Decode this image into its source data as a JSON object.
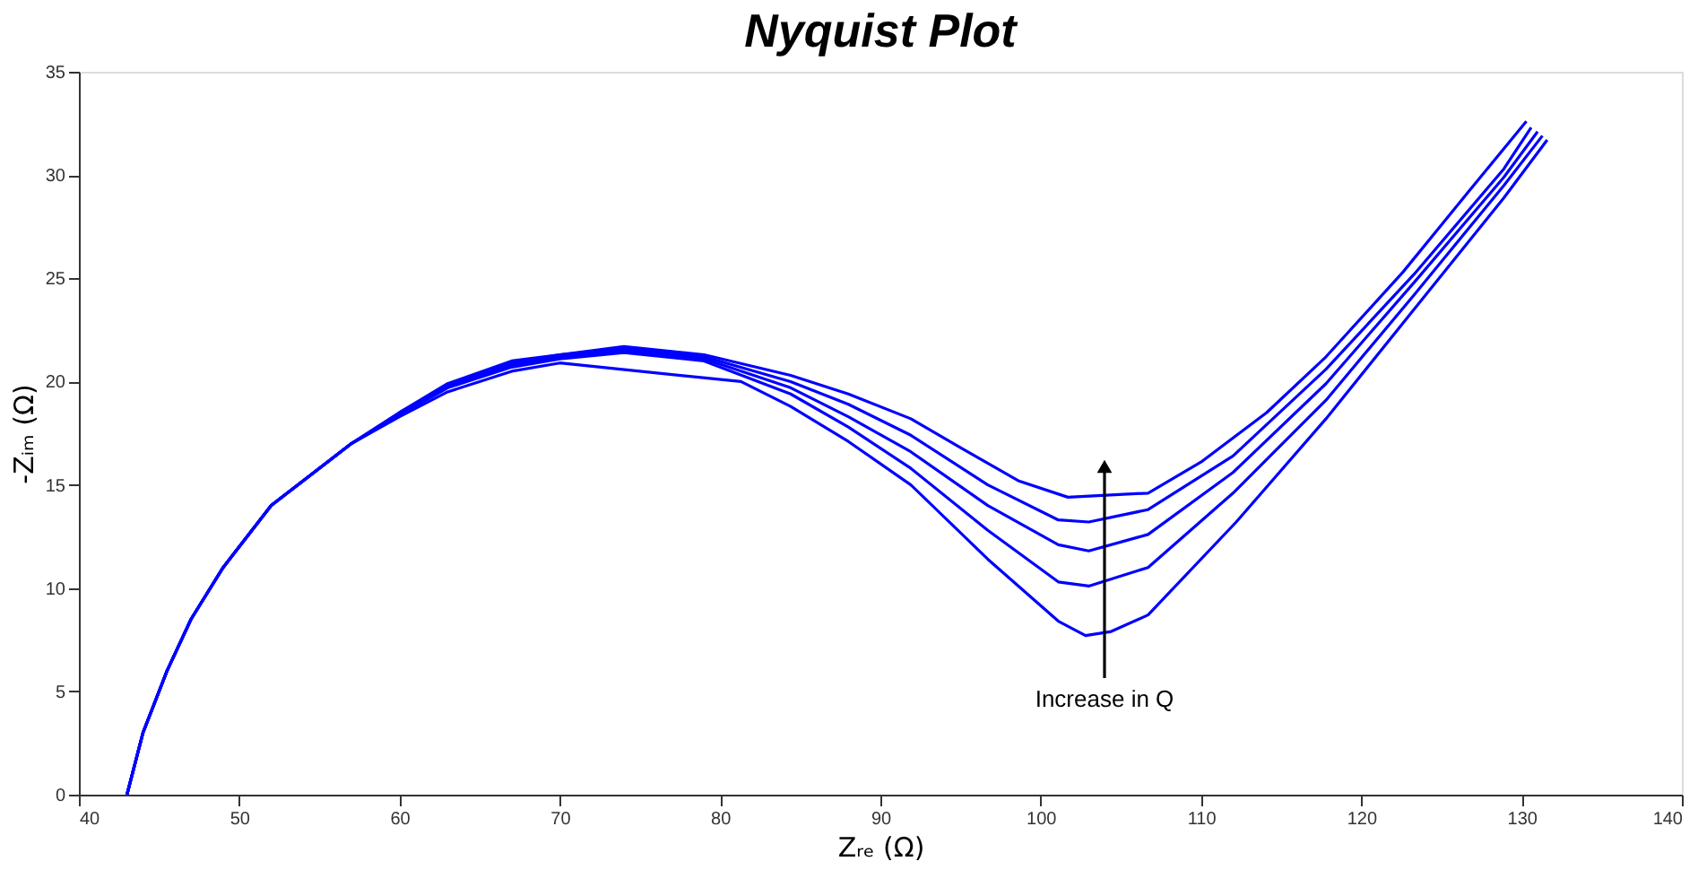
{
  "chart_data": {
    "type": "line",
    "title": "Nyquist Plot",
    "xlabel": "Zᵣₑ (Ω)",
    "ylabel": "-Zᵢₘ (Ω)",
    "xlim": [
      40,
      140
    ],
    "xticks": [
      40,
      50,
      60,
      70,
      80,
      90,
      100,
      110,
      120,
      130,
      140
    ],
    "ylim": [
      0,
      35
    ],
    "yticks": [
      0,
      5,
      10,
      15,
      20,
      25,
      30,
      35
    ],
    "annotations": [
      "Increase in Q"
    ],
    "series": [
      {
        "color": "#0000ff",
        "x": [
          43,
          44,
          45.5,
          47,
          49,
          52,
          57,
          60,
          63,
          67,
          70,
          81.3,
          84.4,
          88,
          91.9,
          96.7,
          101.1,
          102.8,
          104.4,
          106.7,
          112.2,
          117.8,
          123.3,
          128.9,
          131.6
        ],
        "values": [
          0,
          3,
          6,
          8.5,
          11,
          14,
          17,
          18.3,
          19.5,
          20.5,
          20.9,
          20.0,
          18.8,
          17.1,
          15.0,
          11.4,
          8.4,
          7.7,
          7.9,
          8.7,
          13.2,
          18.2,
          23.5,
          28.9,
          31.7
        ]
      },
      {
        "color": "#0000ff",
        "x": [
          43,
          44,
          45.5,
          47,
          49,
          52,
          57,
          60,
          63,
          67,
          70,
          74,
          79,
          84.4,
          88,
          91.9,
          96.7,
          101.1,
          103,
          106.7,
          112,
          117.8,
          123.3,
          128.9,
          131.3
        ],
        "values": [
          0,
          3,
          6,
          8.5,
          11,
          14,
          17,
          18.4,
          19.7,
          20.7,
          21.1,
          21.4,
          21.0,
          19.4,
          17.8,
          15.8,
          12.8,
          10.3,
          10.1,
          11.0,
          14.6,
          19.1,
          24.2,
          29.5,
          31.9
        ]
      },
      {
        "color": "#0000ff",
        "x": [
          43,
          44,
          45.5,
          47,
          49,
          52,
          57,
          60,
          63,
          67,
          70,
          74,
          79,
          84.4,
          88,
          91.9,
          96.7,
          101.1,
          103,
          106.7,
          112,
          117.8,
          123.3,
          128.9,
          131.0
        ],
        "values": [
          0,
          3,
          6,
          8.5,
          11,
          14,
          17,
          18.4,
          19.7,
          20.8,
          21.2,
          21.5,
          21.1,
          19.7,
          18.3,
          16.6,
          14.0,
          12.1,
          11.8,
          12.6,
          15.6,
          19.9,
          24.8,
          29.9,
          32.1
        ]
      },
      {
        "color": "#0000ff",
        "x": [
          43,
          44,
          45.5,
          47,
          49,
          52,
          57,
          60,
          63,
          67,
          70,
          74,
          79,
          84.4,
          88,
          91.9,
          96.7,
          101.1,
          103,
          106.7,
          112,
          117.8,
          123.3,
          128.9,
          130.6
        ],
        "values": [
          0,
          3,
          6,
          8.5,
          11,
          14,
          17,
          18.5,
          19.8,
          20.9,
          21.3,
          21.6,
          21.2,
          20.0,
          18.9,
          17.4,
          15.0,
          13.3,
          13.2,
          13.8,
          16.4,
          20.6,
          25.2,
          30.3,
          32.3
        ]
      },
      {
        "color": "#0000ff",
        "x": [
          43,
          44,
          45.5,
          47,
          49,
          52,
          57,
          60,
          63,
          67,
          70,
          74,
          79,
          84.4,
          88,
          91.9,
          95,
          98.6,
          101.7,
          106.7,
          110,
          114.1,
          117.8,
          122.6,
          126.7,
          130.3
        ],
        "values": [
          0,
          3,
          6,
          8.5,
          11,
          14,
          17,
          18.5,
          19.9,
          21.0,
          21.3,
          21.7,
          21.3,
          20.3,
          19.4,
          18.2,
          16.8,
          15.2,
          14.4,
          14.6,
          16.1,
          18.5,
          21.2,
          25.3,
          29.2,
          32.6
        ]
      }
    ]
  }
}
